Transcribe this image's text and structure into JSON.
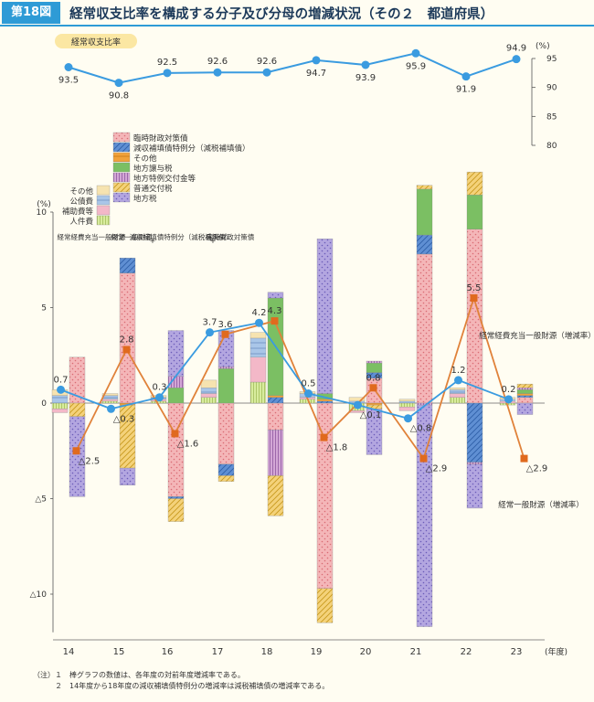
{
  "header": {
    "figure_number": "第18図",
    "title": "経常収支比率を構成する分子及び分母の増減状況（その２　都道府県）"
  },
  "colors": {
    "line_top": "#3a9be0",
    "marker_blue": "#3a9be0",
    "marker_orange": "#e06a1e",
    "line_orange": "#e0823a"
  },
  "chart_data": [
    {
      "type": "line",
      "title": "",
      "legend_label": "経常収支比率",
      "x": [
        "14",
        "15",
        "16",
        "17",
        "18",
        "19",
        "20",
        "21",
        "22",
        "23"
      ],
      "values": [
        93.5,
        90.8,
        92.5,
        92.6,
        92.6,
        94.7,
        93.9,
        95.9,
        91.9,
        94.9
      ],
      "labels": [
        "93.5",
        "90.8",
        "92.5",
        "92.6",
        "92.6",
        "94.7",
        "93.9",
        "95.9",
        "91.9",
        "94.9"
      ],
      "unit": "(%)",
      "ylim": [
        80,
        95
      ],
      "yticks": [
        "95",
        "90",
        "85",
        "80"
      ]
    },
    {
      "type": "bar",
      "stacking": "stacked",
      "unit": "(%)",
      "ylim": [
        -12,
        10
      ],
      "yticks": [
        "10",
        "5",
        "0",
        "△5",
        "△10"
      ],
      "categories": [
        "14",
        "15",
        "16",
        "17",
        "18",
        "19",
        "20",
        "21",
        "22",
        "23"
      ],
      "x_suffix": "(年度)",
      "group_labels": {
        "numerator": "経常経費充当一般財源",
        "denominator_parts": [
          "経常一般財源",
          "減収補填債特例分（減税補填債）",
          "臨時財政対策債"
        ],
        "plus": "+"
      },
      "series_numerator": [
        {
          "name": "人件費",
          "color": "#d8ec9e",
          "values": [
            -0.3,
            0.1,
            0.1,
            0.3,
            1.1,
            0.2,
            -0.4,
            -0.2,
            0.3,
            -0.1
          ]
        },
        {
          "name": "補助費等",
          "color": "#f3b8c8",
          "values": [
            -0.2,
            0.1,
            0.1,
            0.2,
            1.3,
            0.1,
            -0.1,
            -0.2,
            0.2,
            0.1
          ]
        },
        {
          "name": "公債費",
          "color": "#a9c6e8",
          "values": [
            0.4,
            0.2,
            0.1,
            0.3,
            1.0,
            0.2,
            0.1,
            0.1,
            0.2,
            0.1
          ]
        },
        {
          "name": "その他",
          "color": "#f6e3b0",
          "values": [
            0.3,
            0.1,
            0.1,
            0.4,
            0.3,
            0.1,
            0.2,
            0.1,
            0.1,
            0.1
          ]
        }
      ],
      "series_denominator": [
        {
          "name": "臨時財政対策債",
          "color": "#f4b6b8",
          "values": [
            2.4,
            6.8,
            -4.9,
            -3.2,
            -1.4,
            -9.7,
            1.3,
            7.8,
            9.1,
            0.3
          ]
        },
        {
          "name": "減収補填債特例分（減税補填債）",
          "color": "#5f8fd3",
          "values": [
            0,
            0.8,
            -0.1,
            -0.6,
            0.3,
            0.1,
            0.3,
            1.0,
            -3.1,
            0.1
          ]
        },
        {
          "name": "その他",
          "color": "#f2a23a",
          "values": [
            0,
            -0.1,
            0,
            0,
            0.1,
            0.1,
            -0.1,
            0,
            0,
            0.1
          ]
        },
        {
          "name": "地方譲与税",
          "color": "#7bbf63",
          "values": [
            0,
            0,
            0.8,
            1.8,
            5.1,
            0.3,
            0.5,
            2.4,
            1.8,
            0.2
          ]
        },
        {
          "name": "地方特例交付金等",
          "color": "#d3a7d6",
          "values": [
            0,
            0,
            0.6,
            0.1,
            -2.4,
            0,
            0.1,
            -0.1,
            -0.1,
            0.1
          ]
        },
        {
          "name": "普通交付税",
          "color": "#f4d27a",
          "values": [
            -0.7,
            -3.3,
            -1.2,
            -0.3,
            -2.1,
            -1.8,
            -0.2,
            0.2,
            1.2,
            0.2
          ]
        },
        {
          "name": "地方税",
          "color": "#b3a6e0",
          "values": [
            -4.2,
            -0.9,
            2.4,
            1.9,
            0.3,
            8.1,
            -2.4,
            -11.6,
            -2.3,
            -0.6
          ]
        }
      ],
      "line_numerator": {
        "name": "経常経費充当一般財源（増減率）",
        "color": "#3a9be0",
        "values": [
          0.7,
          -0.3,
          0.3,
          3.7,
          4.2,
          0.5,
          -0.1,
          -0.8,
          1.2,
          0.2
        ],
        "labels": [
          "0.7",
          "△0.3",
          "0.3",
          "3.7",
          "4.2",
          "0.5",
          "△0.1",
          "△0.8",
          "1.2",
          "0.2"
        ]
      },
      "line_denominator": {
        "name": "経常一般財源（増減率）",
        "color": "#e06a1e",
        "values": [
          -2.5,
          2.8,
          -1.6,
          3.6,
          4.3,
          -1.8,
          0.8,
          -2.9,
          5.5,
          -2.9
        ],
        "labels": [
          "△2.5",
          "2.8",
          "△1.6",
          "3.6",
          "4.3",
          "△1.8",
          "0.8",
          "△2.9",
          "5.5",
          "△2.9"
        ]
      },
      "annotations": {
        "numerator": "経常経費充当一般財源（増減率）",
        "denominator": "経常一般財源（増減率）"
      }
    }
  ],
  "notes": [
    "（注）１　棒グラフの数値は、各年度の対前年度増減率である。",
    "２　14年度から18年度の減収補填債特例分の増減率は減税補填債の増減率である。"
  ]
}
